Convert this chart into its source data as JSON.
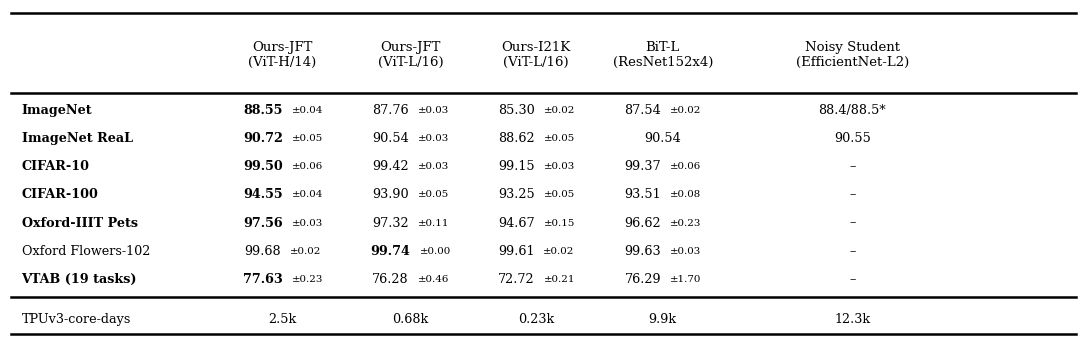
{
  "col_headers": [
    "",
    "Ours-JFT\n(ViT-H/14)",
    "Ours-JFT\n(ViT-L/16)",
    "Ours-I21K\n(ViT-L/16)",
    "BiT-L\n(ResNet152x4)",
    "Noisy Student\n(EfficientNet-L2)"
  ],
  "rows": [
    {
      "label": "ImageNet",
      "values": [
        "88.55±0.04",
        "87.76±0.03",
        "85.30±0.02",
        "87.54±0.02",
        "88.4/88.5*"
      ],
      "bold_data_col": 0
    },
    {
      "label": "ImageNet ReaL",
      "values": [
        "90.72±0.05",
        "90.54±0.03",
        "88.62±0.05",
        "90.54",
        "90.55"
      ],
      "bold_data_col": 0
    },
    {
      "label": "CIFAR-10",
      "values": [
        "99.50±0.06",
        "99.42±0.03",
        "99.15±0.03",
        "99.37±0.06",
        "–"
      ],
      "bold_data_col": 0
    },
    {
      "label": "CIFAR-100",
      "values": [
        "94.55±0.04",
        "93.90±0.05",
        "93.25±0.05",
        "93.51±0.08",
        "–"
      ],
      "bold_data_col": 0
    },
    {
      "label": "Oxford-IIIT Pets",
      "values": [
        "97.56±0.03",
        "97.32±0.11",
        "94.67±0.15",
        "96.62±0.23",
        "–"
      ],
      "bold_data_col": 0
    },
    {
      "label": "Oxford Flowers-102",
      "values": [
        "99.68±0.02",
        "99.74±0.00",
        "99.61±0.02",
        "99.63±0.03",
        "–"
      ],
      "bold_data_col": 1
    },
    {
      "label": "VTAB (19 tasks)",
      "values": [
        "77.63±0.23",
        "76.28±0.46",
        "72.72±0.21",
        "76.29±1.70",
        "–"
      ],
      "bold_data_col": 0
    }
  ],
  "footer_row": {
    "label": "TPUv3-core-days",
    "values": [
      "2.5k",
      "0.68k",
      "0.23k",
      "9.9k",
      "12.3k"
    ]
  },
  "label_bold": [
    true,
    true,
    true,
    true,
    true,
    false,
    true
  ],
  "background_color": "#ffffff",
  "text_color": "#000000",
  "figsize": [
    10.87,
    3.4
  ],
  "dpi": 100
}
